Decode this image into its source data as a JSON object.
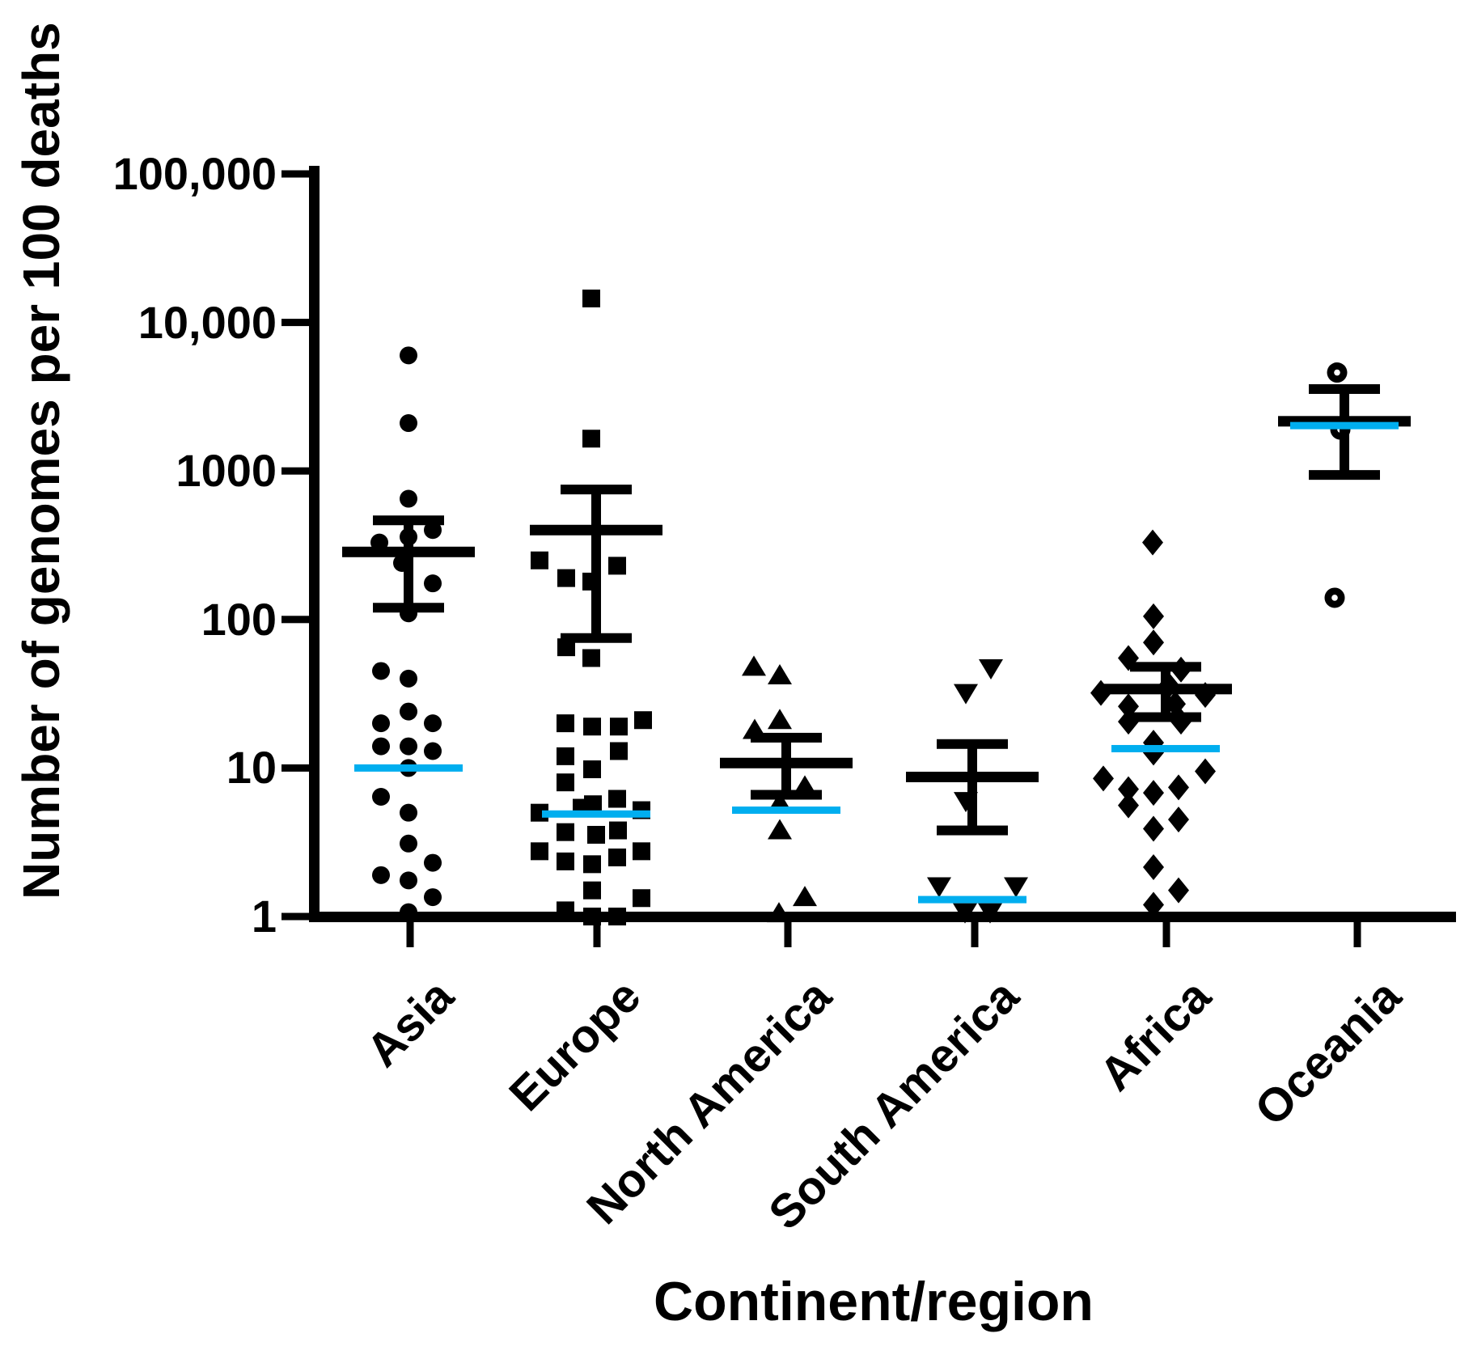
{
  "figure": {
    "background": "#FFFFFF"
  },
  "chart_data": {
    "type": "scatter",
    "subtype": "column-dot-plot-with-mean-sem-and-median",
    "title": "",
    "xlabel": "Continent/region",
    "ylabel": "Number of genomes per 100 deaths",
    "y_scale": "log10",
    "ylim": [
      1,
      100000
    ],
    "grid": false,
    "legend": "none",
    "y_ticks": [
      {
        "value": 100000,
        "label": "100,000"
      },
      {
        "value": 10000,
        "label": "10,000"
      },
      {
        "value": 1000,
        "label": "1000"
      },
      {
        "value": 100,
        "label": "100"
      },
      {
        "value": 10,
        "label": "10"
      },
      {
        "value": 1,
        "label": "1"
      }
    ],
    "colors": {
      "marker": "#000000",
      "axis": "#000000",
      "error_bar": "#000000",
      "median_line": "#00AEEF"
    },
    "groups": [
      {
        "label": "Asia",
        "marker": "circle",
        "mean": 285,
        "sem_upper": 465,
        "sem_lower": 120,
        "median": 10,
        "points": [
          [
            0,
            6000
          ],
          [
            0,
            2100
          ],
          [
            0,
            650
          ],
          [
            30,
            400
          ],
          [
            0,
            360
          ],
          [
            -36,
            330
          ],
          [
            -8,
            240
          ],
          [
            30,
            175
          ],
          [
            0,
            110
          ],
          [
            -34,
            45
          ],
          [
            0,
            40
          ],
          [
            0,
            24
          ],
          [
            -34,
            20
          ],
          [
            30,
            20
          ],
          [
            -34,
            14
          ],
          [
            0,
            14
          ],
          [
            30,
            13
          ],
          [
            0,
            10
          ],
          [
            -34,
            6.4
          ],
          [
            0,
            5
          ],
          [
            0,
            3.1
          ],
          [
            30,
            2.3
          ],
          [
            -34,
            1.9
          ],
          [
            0,
            1.75
          ],
          [
            30,
            1.35
          ],
          [
            0,
            1.07
          ]
        ]
      },
      {
        "label": "Europe",
        "marker": "square",
        "mean": 400,
        "sem_upper": 750,
        "sem_lower": 75,
        "median": 4.9,
        "points": [
          [
            -6,
            14500
          ],
          [
            -6,
            1650
          ],
          [
            -70,
            250
          ],
          [
            26,
            230
          ],
          [
            -37,
            190
          ],
          [
            -6,
            180
          ],
          [
            -37,
            65
          ],
          [
            -6,
            55
          ],
          [
            -38,
            20
          ],
          [
            -5,
            19
          ],
          [
            28,
            19
          ],
          [
            58,
            21
          ],
          [
            -38,
            12
          ],
          [
            28,
            13
          ],
          [
            -5,
            9.8
          ],
          [
            -38,
            8
          ],
          [
            -70,
            5.0
          ],
          [
            -18,
            5.4
          ],
          [
            -4,
            5.7
          ],
          [
            26,
            6.2
          ],
          [
            56,
            5.2
          ],
          [
            -38,
            3.7
          ],
          [
            0,
            3.55
          ],
          [
            27,
            3.8
          ],
          [
            -70,
            2.75
          ],
          [
            -38,
            2.35
          ],
          [
            -5,
            2.25
          ],
          [
            26,
            2.5
          ],
          [
            56,
            2.75
          ],
          [
            -5,
            1.5
          ],
          [
            56,
            1.33
          ],
          [
            -38,
            1.1
          ],
          [
            -5,
            1.0
          ],
          [
            26,
            1.0
          ]
        ]
      },
      {
        "label": "North America",
        "marker": "triangle-up",
        "mean": 10.8,
        "sem_upper": 16,
        "sem_lower": 6.6,
        "median": 5.2,
        "points": [
          [
            -40,
            48
          ],
          [
            -8,
            42
          ],
          [
            -8,
            21
          ],
          [
            -39,
            18
          ],
          [
            23,
            7.5
          ],
          [
            -8,
            5.8
          ],
          [
            -8,
            3.8
          ],
          [
            23,
            1.35
          ],
          [
            -9,
            1.05
          ]
        ]
      },
      {
        "label": "South America",
        "marker": "triangle-down",
        "mean": 8.7,
        "sem_upper": 14.5,
        "sem_lower": 3.8,
        "median": 1.3,
        "points": [
          [
            23,
            47
          ],
          [
            -8,
            32
          ],
          [
            -8,
            6.0
          ],
          [
            -41,
            1.6
          ],
          [
            54,
            1.6
          ],
          [
            -9,
            1.07
          ],
          [
            22,
            1.07
          ]
        ]
      },
      {
        "label": "Africa",
        "marker": "diamond",
        "mean": 34,
        "sem_upper": 48,
        "sem_lower": 22,
        "median": 13.5,
        "points": [
          [
            -16,
            330
          ],
          [
            -15,
            105
          ],
          [
            -15,
            70
          ],
          [
            -46,
            55
          ],
          [
            19,
            46
          ],
          [
            4,
            36
          ],
          [
            -80,
            32
          ],
          [
            49,
            31
          ],
          [
            12,
            27
          ],
          [
            -46,
            26
          ],
          [
            -46,
            20.5
          ],
          [
            19,
            20.5
          ],
          [
            -15,
            14.8
          ],
          [
            -15,
            12.7
          ],
          [
            49,
            9.5
          ],
          [
            -77,
            8.5
          ],
          [
            16,
            7.4
          ],
          [
            -46,
            7.2
          ],
          [
            -15,
            6.8
          ],
          [
            -46,
            5.6
          ],
          [
            16,
            4.5
          ],
          [
            -15,
            3.9
          ],
          [
            -15,
            2.15
          ],
          [
            16,
            1.5
          ],
          [
            -15,
            1.2
          ]
        ]
      },
      {
        "label": "Oceania",
        "marker": "circle-open",
        "mean": 2160,
        "sem_upper": 3560,
        "sem_lower": 940,
        "median": 2020,
        "points": [
          [
            -9,
            4600
          ],
          [
            -5,
            1900
          ],
          [
            -12,
            140
          ]
        ]
      }
    ]
  }
}
